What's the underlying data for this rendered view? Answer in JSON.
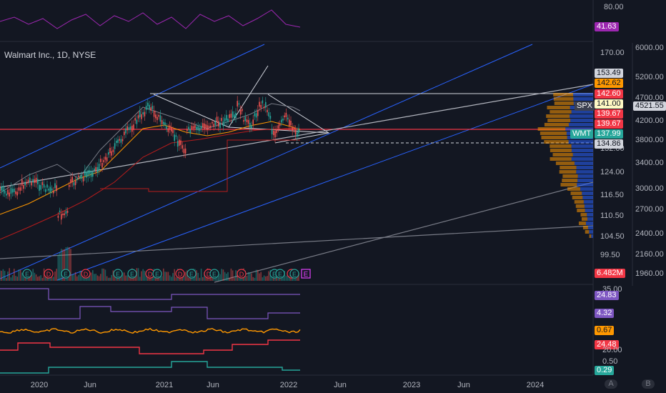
{
  "symbol_title": "Walmart Inc., 1D, NYSE",
  "rsi": {
    "level_label": "80.00",
    "value_badge": "41.63",
    "color": "#9c27b0"
  },
  "price_axis": {
    "left_ticks": [
      "170.00",
      "132.00",
      "124.00",
      "116.50",
      "110.50",
      "104.50",
      "99.50"
    ],
    "right_ticks": [
      "6000.00",
      "5200.00",
      "4700.00",
      "4200.00",
      "3800.00",
      "3400.00",
      "3000.00",
      "2700.00",
      "2400.00",
      "2160.00",
      "1960.00"
    ]
  },
  "badges": {
    "b15349": "153.49",
    "b14262": "142.62",
    "b14260": "142.60",
    "b14100": "141.00",
    "spx_label": "SPX",
    "spx_value": "4521.55",
    "b13967a": "139.67",
    "b13967b": "139.67",
    "wmt_label": "WMT",
    "wmt_value": "137.99",
    "b13486": "134.86",
    "volume": "6.482M"
  },
  "indicators": {
    "p1_label": "35.00",
    "p1_value": "24.83",
    "p2_value": "4.32",
    "p3_value": "0.67",
    "p4_value": "24.48",
    "p4_label": "20.00",
    "p5_label": "0.50",
    "p5_value": "0.29"
  },
  "time_axis": [
    "2020",
    "Jun",
    "2021",
    "Jun",
    "2022",
    "Jun",
    "2023",
    "Jun",
    "2024"
  ],
  "bottom_buttons": {
    "a": "A",
    "b": "B"
  },
  "event_markers": [
    "E",
    "D",
    "E",
    "D",
    "E",
    "E",
    "D",
    "E",
    "D",
    "E",
    "D",
    "E",
    "D",
    "E",
    "E",
    "D",
    "E",
    "E"
  ],
  "colors": {
    "bg": "#131722",
    "up": "#26a69a",
    "down": "#ef5350",
    "blue_channel": "#2962ff",
    "orange": "#ff9800"
  }
}
